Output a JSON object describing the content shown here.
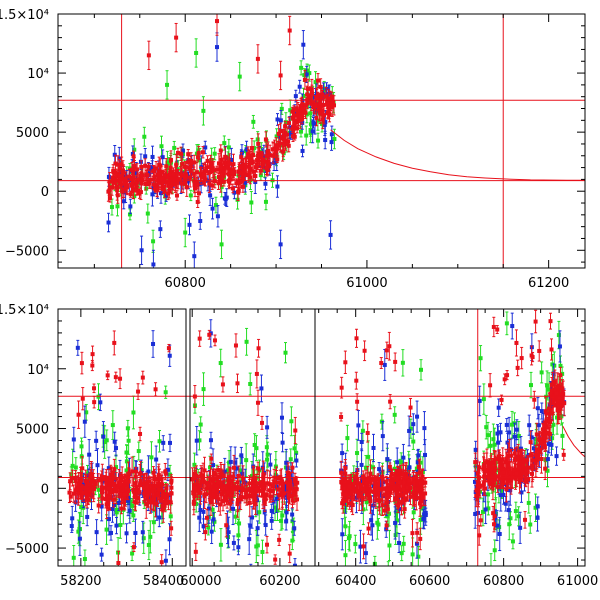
{
  "figure": {
    "description_panels": [
      "top zoom panel",
      "bottom multi-season panel"
    ]
  },
  "chart_data": [
    {
      "type": "scatter",
      "title": "",
      "xlabel": "",
      "ylabel": "",
      "xlim": [
        60660,
        61240
      ],
      "ylim": [
        -6500,
        15000
      ],
      "x_ticks": [
        60800,
        61000,
        61200
      ],
      "x_tick_labels": [
        "60800",
        "61000",
        "61200"
      ],
      "y_ticks": [
        15000,
        10000,
        5000,
        0,
        -5000
      ],
      "y_tick_labels": [
        "1.5×10⁴",
        "10⁴",
        "5000",
        "0",
        "−5000"
      ],
      "hlines": [
        7700,
        900
      ],
      "vlines": [
        60730,
        61150
      ],
      "model_curve": {
        "color": "#e8111b",
        "points": [
          [
            60960,
            5200
          ],
          [
            60975,
            4300
          ],
          [
            60990,
            3600
          ],
          [
            61010,
            2900
          ],
          [
            61030,
            2350
          ],
          [
            61050,
            1950
          ],
          [
            61070,
            1650
          ],
          [
            61090,
            1400
          ],
          [
            61110,
            1230
          ],
          [
            61130,
            1120
          ],
          [
            61150,
            1040
          ],
          [
            61180,
            960
          ],
          [
            61220,
            930
          ],
          [
            61240,
            920
          ]
        ]
      },
      "series": [
        {
          "name": "red",
          "color": "#e8111b",
          "bulk": [
            [
              60710,
              1000,
              600
            ],
            [
              60760,
              1200,
              700
            ],
            [
              60800,
              1400,
              800
            ],
            [
              60840,
              1900,
              900
            ],
            [
              60870,
              2800,
              1100
            ],
            [
              60890,
              4200,
              1300
            ],
            [
              60910,
              6400,
              1400
            ],
            [
              60930,
              7800,
              1500
            ],
            [
              60950,
              7600,
              1400
            ],
            [
              60965,
              6400,
              1200
            ]
          ],
          "outliers": [
            [
              60760,
              11500
            ],
            [
              60790,
              13000
            ],
            [
              60835,
              14400
            ],
            [
              60880,
              11200
            ],
            [
              60905,
              9800
            ],
            [
              60915,
              13600
            ]
          ]
        },
        {
          "name": "green",
          "color": "#22dd22",
          "bulk": [
            [
              60730,
              600,
              1800
            ],
            [
              60800,
              1200,
              2200
            ],
            [
              60880,
              3000,
              2500
            ],
            [
              60940,
              7200,
              2000
            ]
          ],
          "outliers": [
            [
              60780,
              9000
            ],
            [
              60812,
              11700
            ],
            [
              60800,
              -3500
            ],
            [
              60840,
              -4500
            ],
            [
              60860,
              9700
            ],
            [
              60820,
              6800
            ]
          ]
        },
        {
          "name": "blue",
          "color": "#1a2ed6",
          "bulk": [
            [
              60730,
              600,
              2000
            ],
            [
              60810,
              900,
              2500
            ],
            [
              60890,
              2800,
              2600
            ],
            [
              60950,
              7500,
              2200
            ]
          ],
          "outliers": [
            [
              60752,
              -5000
            ],
            [
              60765,
              -6200
            ],
            [
              60835,
              12200
            ],
            [
              60810,
              -5500
            ],
            [
              60930,
              12400
            ],
            [
              60960,
              -3700
            ],
            [
              60905,
              -4500
            ]
          ]
        }
      ]
    },
    {
      "type": "scatter",
      "title": "",
      "xlabel": "",
      "ylabel": "",
      "segments": [
        {
          "xlim": [
            58150,
            58430
          ],
          "x_ticks": [
            58200,
            58400
          ],
          "x_tick_labels": [
            "58200",
            "58400"
          ],
          "data_x": [
            58175,
            58400
          ]
        },
        {
          "xlim": [
            59995,
            60280
          ],
          "x_ticks": [
            60000,
            60200
          ],
          "x_tick_labels": [
            "60000",
            "60200"
          ],
          "data_x": [
            60000,
            60240
          ]
        },
        {
          "xlim": [
            60290,
            61020
          ],
          "x_ticks": [
            60400,
            60600,
            60800,
            61000
          ],
          "x_tick_labels": [
            "60400",
            "60600",
            "60800",
            "61000"
          ],
          "data_x": [
            60360,
            60590
          ]
        },
        {
          "xlim": [
            60290,
            61020
          ],
          "x_ticks": [],
          "x_tick_labels": [],
          "data_x": [
            60720,
            60965
          ]
        }
      ],
      "ylim": [
        -6500,
        15000
      ],
      "y_ticks": [
        15000,
        10000,
        5000,
        0,
        -5000
      ],
      "y_tick_labels": [
        "1.5×10⁴",
        "10⁴",
        "5000",
        "0",
        "−5000"
      ],
      "hlines": [
        7700,
        900
      ],
      "vlines": [
        60730
      ],
      "series": [
        {
          "name": "red",
          "color": "#e8111b"
        },
        {
          "name": "green",
          "color": "#22dd22"
        },
        {
          "name": "blue",
          "color": "#1a2ed6"
        }
      ]
    }
  ],
  "colors": {
    "red": "#e8111b",
    "green": "#22dd22",
    "blue": "#1a2ed6",
    "frame": "#000000"
  }
}
